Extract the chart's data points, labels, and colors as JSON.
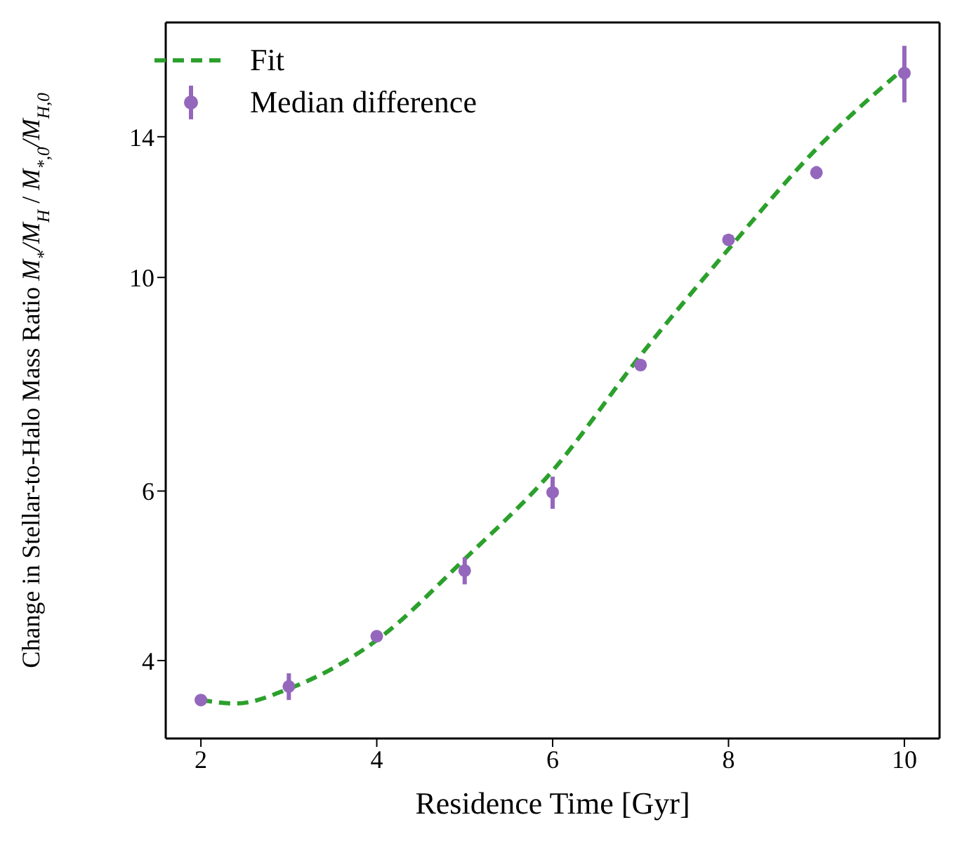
{
  "chart_data": {
    "type": "scatter",
    "xlabel": "Residence Time [Gyr]",
    "ylabel": "Change in Stellar-to-Halo Mass Ratio M$_{*}$/M$_{H}$ / M$_{*,0}$/M$_{H,0}$",
    "log": "y",
    "xlim": [
      1.6,
      10.4
    ],
    "xticks": [
      2,
      4,
      6,
      8,
      10
    ],
    "ylim": [
      3.32,
      18.4
    ],
    "yticks": [
      4,
      6,
      10,
      14
    ],
    "grid": false,
    "legend": "top left",
    "series": [
      {
        "name": "Fit",
        "type": "line",
        "color": "#2ca02c",
        "line_style": "dashed",
        "marker": "none",
        "x": [
          2,
          2.4,
          3,
          4,
          5,
          6,
          7,
          8,
          9,
          10
        ],
        "values": [
          3.64,
          3.61,
          3.74,
          4.2,
          5.1,
          6.3,
          8.3,
          10.7,
          13.6,
          16.5
        ]
      },
      {
        "name": "Median difference",
        "color": "#9467bd",
        "marker": "circle",
        "x": [
          2,
          3,
          4,
          5,
          6,
          7,
          8,
          9,
          10
        ],
        "values": [
          3.64,
          3.76,
          4.24,
          4.96,
          5.98,
          8.11,
          10.94,
          12.85,
          16.3
        ],
        "errors": [
          0.05,
          0.12,
          0.05,
          0.16,
          0.23,
          0.08,
          0.08,
          0.2,
          1.1
        ]
      }
    ]
  }
}
